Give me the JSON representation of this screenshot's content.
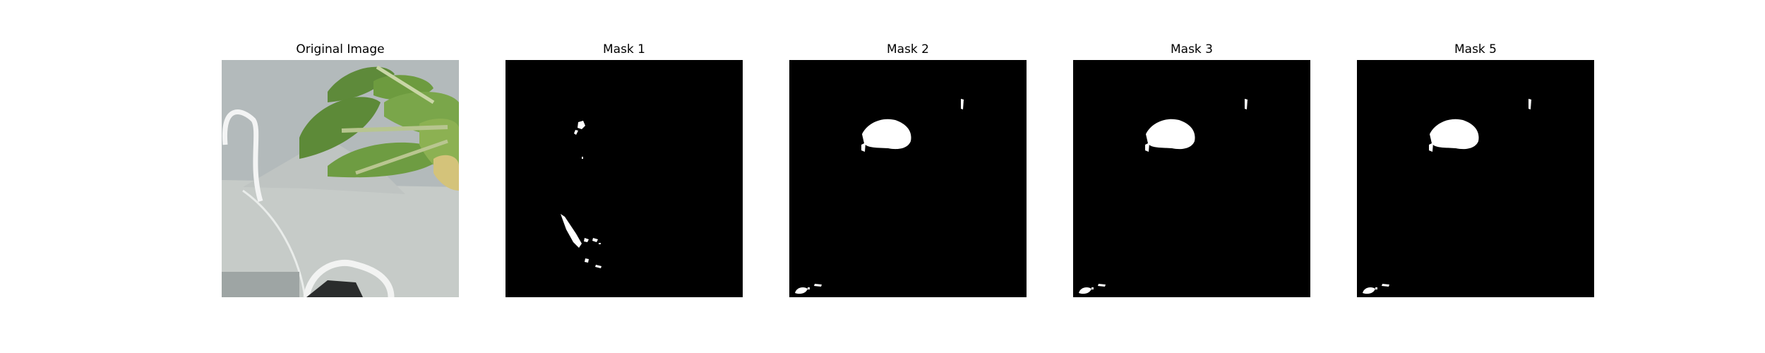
{
  "figure": {
    "panels": [
      {
        "title": "Original Image"
      },
      {
        "title": "Mask 1"
      },
      {
        "title": "Mask 2"
      },
      {
        "title": "Mask 3"
      },
      {
        "title": "Mask 5"
      }
    ]
  },
  "colors": {
    "background": "#ffffff",
    "mask_background": "#000000",
    "mask_foreground": "#ffffff"
  }
}
